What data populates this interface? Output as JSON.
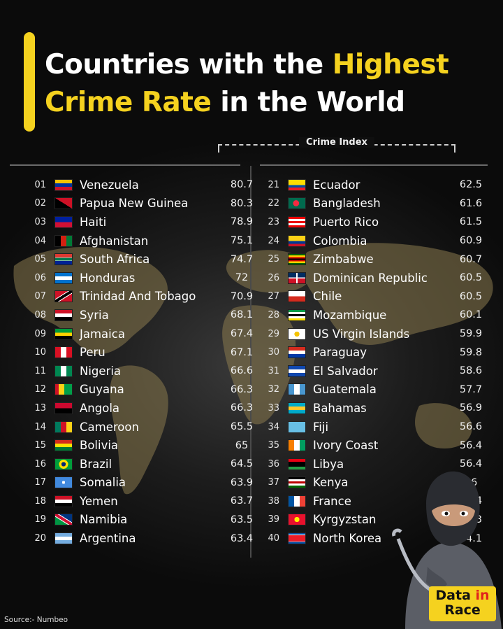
{
  "title": {
    "line1_white": "Countries with the ",
    "line1_yellow": "Highest",
    "line2_yellow": "Crime Rate",
    "line2_white": " in the World"
  },
  "column_header": "Crime Index",
  "colors": {
    "accent": "#f5d21f",
    "background": "#0e0e0e"
  },
  "left_rows": [
    {
      "rank": "01",
      "country": "Venezuela",
      "value": "80.7",
      "flag": "venezuela-flag-icon"
    },
    {
      "rank": "02",
      "country": "Papua New Guinea",
      "value": "80.3",
      "flag": "papua-new-guinea-flag-icon"
    },
    {
      "rank": "03",
      "country": "Haiti",
      "value": "78.9",
      "flag": "haiti-flag-icon"
    },
    {
      "rank": "04",
      "country": "Afghanistan",
      "value": "75.1",
      "flag": "afghanistan-flag-icon"
    },
    {
      "rank": "05",
      "country": "South Africa",
      "value": "74.7",
      "flag": "south-africa-flag-icon"
    },
    {
      "rank": "06",
      "country": "Honduras",
      "value": "72",
      "flag": "honduras-flag-icon"
    },
    {
      "rank": "07",
      "country": "Trinidad And Tobago",
      "value": "70.9",
      "flag": "trinidad-and-tobago-flag-icon"
    },
    {
      "rank": "08",
      "country": "Syria",
      "value": "68.1",
      "flag": "syria-flag-icon"
    },
    {
      "rank": "09",
      "country": "Jamaica",
      "value": "67.4",
      "flag": "jamaica-flag-icon"
    },
    {
      "rank": "10",
      "country": "Peru",
      "value": "67.1",
      "flag": "peru-flag-icon"
    },
    {
      "rank": "11",
      "country": "Nigeria",
      "value": "66.6",
      "flag": "nigeria-flag-icon"
    },
    {
      "rank": "12",
      "country": "Guyana",
      "value": "66.3",
      "flag": "guyana-flag-icon"
    },
    {
      "rank": "13",
      "country": "Angola",
      "value": "66.3",
      "flag": "angola-flag-icon"
    },
    {
      "rank": "14",
      "country": "Cameroon",
      "value": "65.5",
      "flag": "cameroon-flag-icon"
    },
    {
      "rank": "15",
      "country": "Bolivia",
      "value": "65",
      "flag": "bolivia-flag-icon"
    },
    {
      "rank": "16",
      "country": "Brazil",
      "value": "64.5",
      "flag": "brazil-flag-icon"
    },
    {
      "rank": "17",
      "country": "Somalia",
      "value": "63.9",
      "flag": "somalia-flag-icon"
    },
    {
      "rank": "18",
      "country": "Yemen",
      "value": "63.7",
      "flag": "yemen-flag-icon"
    },
    {
      "rank": "19",
      "country": "Namibia",
      "value": "63.5",
      "flag": "namibia-flag-icon"
    },
    {
      "rank": "20",
      "country": "Argentina",
      "value": "63.4",
      "flag": "argentina-flag-icon"
    }
  ],
  "right_rows": [
    {
      "rank": "21",
      "country": "Ecuador",
      "value": "62.5",
      "flag": "ecuador-flag-icon"
    },
    {
      "rank": "22",
      "country": "Bangladesh",
      "value": "61.6",
      "flag": "bangladesh-flag-icon"
    },
    {
      "rank": "23",
      "country": "Puerto Rico",
      "value": "61.5",
      "flag": "puerto-rico-flag-icon"
    },
    {
      "rank": "24",
      "country": "Colombia",
      "value": "60.9",
      "flag": "colombia-flag-icon"
    },
    {
      "rank": "25",
      "country": "Zimbabwe",
      "value": "60.7",
      "flag": "zimbabwe-flag-icon"
    },
    {
      "rank": "26",
      "country": "Dominican Republic",
      "value": "60.5",
      "flag": "dominican-republic-flag-icon"
    },
    {
      "rank": "27",
      "country": "Chile",
      "value": "60.5",
      "flag": "chile-flag-icon"
    },
    {
      "rank": "28",
      "country": "Mozambique",
      "value": "60.1",
      "flag": "mozambique-flag-icon"
    },
    {
      "rank": "29",
      "country": "US Virgin Islands",
      "value": "59.9",
      "flag": "us-virgin-islands-flag-icon"
    },
    {
      "rank": "30",
      "country": "Paraguay",
      "value": "59.8",
      "flag": "paraguay-flag-icon"
    },
    {
      "rank": "31",
      "country": "El Salvador",
      "value": "58.6",
      "flag": "el-salvador-flag-icon"
    },
    {
      "rank": "32",
      "country": "Guatemala",
      "value": "57.7",
      "flag": "guatemala-flag-icon"
    },
    {
      "rank": "33",
      "country": "Bahamas",
      "value": "56.9",
      "flag": "bahamas-flag-icon"
    },
    {
      "rank": "34",
      "country": "Fiji",
      "value": "56.6",
      "flag": "fiji-flag-icon"
    },
    {
      "rank": "35",
      "country": "Ivory Coast",
      "value": "56.4",
      "flag": "ivory-coast-flag-icon"
    },
    {
      "rank": "36",
      "country": "Libya",
      "value": "56.4",
      "flag": "libya-flag-icon"
    },
    {
      "rank": "37",
      "country": "Kenya",
      "value": "56",
      "flag": "kenya-flag-icon"
    },
    {
      "rank": "38",
      "country": "France",
      "value": "55.4",
      "flag": "france-flag-icon"
    },
    {
      "rank": "39",
      "country": "Kyrgyzstan",
      "value": "54.3",
      "flag": "kyrgyzstan-flag-icon"
    },
    {
      "rank": "40",
      "country": "North Korea",
      "value": "54.1",
      "flag": "north-korea-flag-icon"
    }
  ],
  "source": "Source:- Numbeo",
  "logo": {
    "part1": "Data",
    "part2": "in",
    "part3": "Race"
  }
}
